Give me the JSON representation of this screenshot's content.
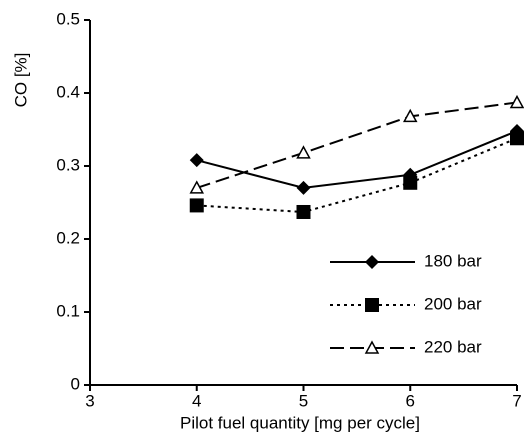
{
  "chart_data": {
    "type": "line",
    "x_label": "Pilot fuel quantity [mg per cycle]",
    "y_label": "CO [%]",
    "x": [
      4,
      5,
      6,
      7
    ],
    "series": [
      {
        "name": "180 bar",
        "color": "#000000",
        "marker": "diamond",
        "dash": "solid",
        "values": [
          0.308,
          0.27,
          0.288,
          0.348
        ]
      },
      {
        "name": "200 bar",
        "color": "#000000",
        "marker": "square",
        "dash": "dotted",
        "values": [
          0.246,
          0.237,
          0.277,
          0.338
        ]
      },
      {
        "name": "220 bar",
        "color": "#000000",
        "marker": "open-triangle",
        "dash": "dashed",
        "values": [
          0.27,
          0.318,
          0.368,
          0.387
        ]
      }
    ],
    "xlim": [
      3,
      7
    ],
    "xticks": [
      3,
      4,
      5,
      6,
      7
    ],
    "ylim": [
      0,
      0.5
    ],
    "yticks": [
      0,
      0.1,
      0.2,
      0.3,
      0.4,
      0.5
    ],
    "grid": false,
    "legend": "lower right"
  }
}
